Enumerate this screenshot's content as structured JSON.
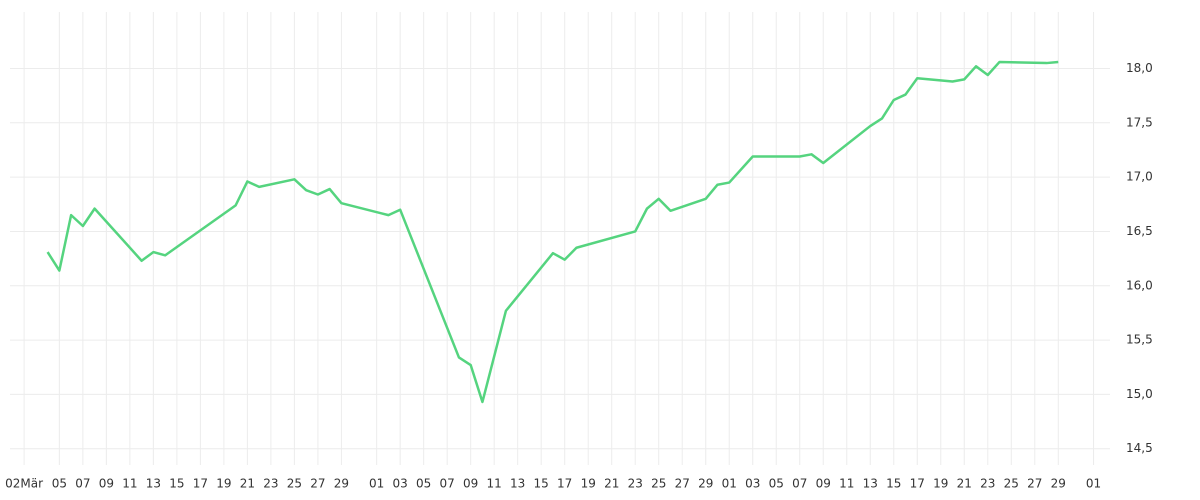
{
  "chart_data": {
    "type": "line",
    "x": [
      2,
      3,
      4,
      5,
      6,
      10,
      11,
      12,
      18,
      19,
      20,
      23,
      24,
      25,
      26,
      27,
      31,
      32,
      37,
      38,
      39,
      41,
      45,
      46,
      47,
      52,
      53,
      54,
      55,
      58,
      59,
      60,
      62,
      66,
      67,
      68,
      72,
      73,
      74,
      75,
      76,
      79,
      80,
      81,
      82,
      83,
      87,
      88
    ],
    "series": [
      {
        "color": "#55d47f",
        "values": [
          16.31,
          16.14,
          16.65,
          16.55,
          16.71,
          16.23,
          16.31,
          16.28,
          16.74,
          16.96,
          16.91,
          16.98,
          16.88,
          16.84,
          16.89,
          16.76,
          16.65,
          16.7,
          15.34,
          15.27,
          14.93,
          15.77,
          16.3,
          16.24,
          16.35,
          16.5,
          16.71,
          16.8,
          16.69,
          16.8,
          16.93,
          16.95,
          17.19,
          17.19,
          17.21,
          17.13,
          17.47,
          17.54,
          17.71,
          17.76,
          17.91,
          17.88,
          17.9,
          18.02,
          17.94,
          18.06,
          18.05,
          18.06
        ]
      }
    ],
    "xlim": [
      -1.2,
      92.4
    ],
    "xticks": [
      {
        "value": 0,
        "label": "02Mär"
      },
      {
        "value": 3,
        "label": "05"
      },
      {
        "value": 5,
        "label": "07"
      },
      {
        "value": 7,
        "label": "09"
      },
      {
        "value": 9,
        "label": "11"
      },
      {
        "value": 11,
        "label": "13"
      },
      {
        "value": 13,
        "label": "15"
      },
      {
        "value": 15,
        "label": "17"
      },
      {
        "value": 17,
        "label": "19"
      },
      {
        "value": 19,
        "label": "21"
      },
      {
        "value": 21,
        "label": "23"
      },
      {
        "value": 23,
        "label": "25"
      },
      {
        "value": 25,
        "label": "27"
      },
      {
        "value": 27,
        "label": "29"
      },
      {
        "value": 30,
        "label": "01"
      },
      {
        "value": 32,
        "label": "03"
      },
      {
        "value": 34,
        "label": "05"
      },
      {
        "value": 36,
        "label": "07"
      },
      {
        "value": 38,
        "label": "09"
      },
      {
        "value": 40,
        "label": "11"
      },
      {
        "value": 42,
        "label": "13"
      },
      {
        "value": 44,
        "label": "15"
      },
      {
        "value": 46,
        "label": "17"
      },
      {
        "value": 48,
        "label": "19"
      },
      {
        "value": 50,
        "label": "21"
      },
      {
        "value": 52,
        "label": "23"
      },
      {
        "value": 54,
        "label": "25"
      },
      {
        "value": 56,
        "label": "27"
      },
      {
        "value": 58,
        "label": "29"
      },
      {
        "value": 60,
        "label": "01"
      },
      {
        "value": 62,
        "label": "03"
      },
      {
        "value": 64,
        "label": "05"
      },
      {
        "value": 66,
        "label": "07"
      },
      {
        "value": 68,
        "label": "09"
      },
      {
        "value": 70,
        "label": "11"
      },
      {
        "value": 72,
        "label": "13"
      },
      {
        "value": 74,
        "label": "15"
      },
      {
        "value": 76,
        "label": "17"
      },
      {
        "value": 78,
        "label": "19"
      },
      {
        "value": 80,
        "label": "21"
      },
      {
        "value": 82,
        "label": "23"
      },
      {
        "value": 84,
        "label": "25"
      },
      {
        "value": 86,
        "label": "27"
      },
      {
        "value": 88,
        "label": "29"
      },
      {
        "value": 91,
        "label": "01"
      }
    ],
    "ylim": [
      14.35,
      18.52
    ],
    "yticks": [
      {
        "value": 14.5,
        "label": "14,5"
      },
      {
        "value": 15,
        "label": "15,0"
      },
      {
        "value": 15.5,
        "label": "15,5"
      },
      {
        "value": 16,
        "label": "16,0"
      },
      {
        "value": 16.5,
        "label": "16,5"
      },
      {
        "value": 17,
        "label": "17,0"
      },
      {
        "value": 17.5,
        "label": "17,5"
      },
      {
        "value": 18,
        "label": "18,0"
      }
    ],
    "grid": true
  }
}
